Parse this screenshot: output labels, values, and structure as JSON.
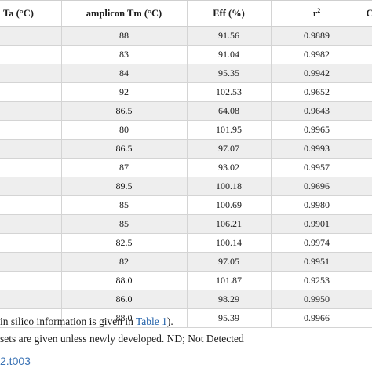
{
  "table": {
    "headers": {
      "ta": "Ta (°C)",
      "tm": "amplicon Tm (°C)",
      "eff": "Eff (%)",
      "r2_base": "r",
      "r2_sup": "2",
      "last": "C"
    },
    "rows": [
      {
        "tm": "88",
        "eff": "91.56",
        "r2": "0.9889"
      },
      {
        "tm": "83",
        "eff": "91.04",
        "r2": "0.9982"
      },
      {
        "tm": "84",
        "eff": "95.35",
        "r2": "0.9942"
      },
      {
        "tm": "92",
        "eff": "102.53",
        "r2": "0.9652"
      },
      {
        "tm": "86.5",
        "eff": "64.08",
        "r2": "0.9643"
      },
      {
        "tm": "80",
        "eff": "101.95",
        "r2": "0.9965"
      },
      {
        "tm": "86.5",
        "eff": "97.07",
        "r2": "0.9993"
      },
      {
        "tm": "87",
        "eff": "93.02",
        "r2": "0.9957"
      },
      {
        "tm": "89.5",
        "eff": "100.18",
        "r2": "0.9696"
      },
      {
        "tm": "85",
        "eff": "100.69",
        "r2": "0.9980"
      },
      {
        "tm": "85",
        "eff": "106.21",
        "r2": "0.9901"
      },
      {
        "tm": "82.5",
        "eff": "100.14",
        "r2": "0.9974"
      },
      {
        "tm": "82",
        "eff": "97.05",
        "r2": "0.9951"
      },
      {
        "tm": "88.0",
        "eff": "101.87",
        "r2": "0.9253"
      },
      {
        "tm": "86.0",
        "eff": "98.29",
        "r2": "0.9950"
      },
      {
        "tm": "88.0",
        "eff": "95.39",
        "r2": "0.9966"
      }
    ]
  },
  "notes": {
    "line1_text": "in silico information is given in ",
    "line1_link": "Table 1",
    "line1_end": ").",
    "line2_text": "sets are given unless newly developed. ND; Not Detected"
  },
  "doi": "2.t003"
}
